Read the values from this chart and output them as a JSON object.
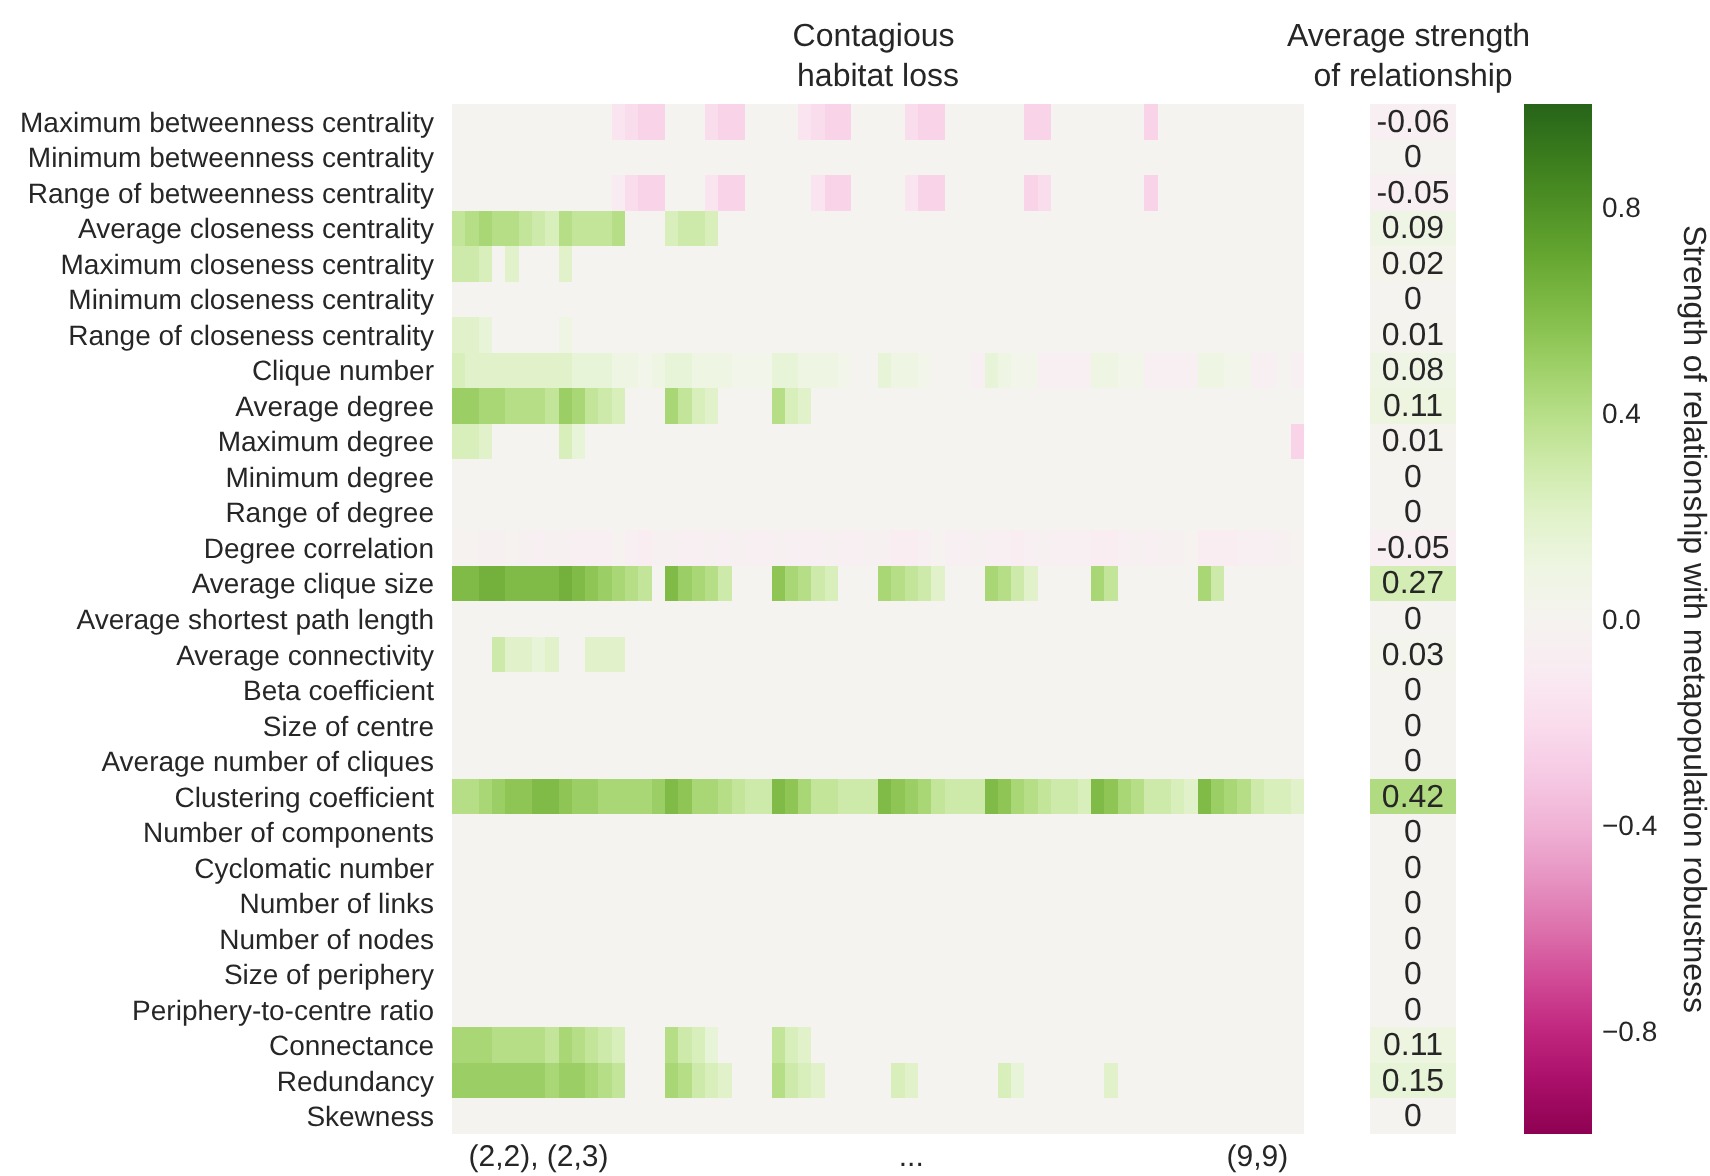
{
  "chart_data": [
    {
      "type": "heatmap",
      "title": "Contagious\nhabitat loss",
      "categories": [
        null,
        null,
        null,
        null,
        null,
        null,
        "(2,2), (2,3)",
        null,
        null,
        null,
        null,
        null,
        null,
        null,
        null,
        null,
        null,
        null,
        null,
        null,
        null,
        null,
        null,
        null,
        null,
        null,
        null,
        null,
        null,
        null,
        null,
        null,
        null,
        null,
        "...",
        null,
        null,
        null,
        null,
        null,
        null,
        null,
        null,
        null,
        null,
        null,
        null,
        null,
        null,
        null,
        null,
        null,
        null,
        null,
        null,
        null,
        null,
        null,
        null,
        null,
        "(9,9)",
        null,
        null,
        null
      ],
      "y_categories": [
        "Maximum betweenness centrality",
        "Minimum betweenness centrality",
        "Range of betweenness centrality",
        "Average closeness centrality",
        "Maximum closeness centrality",
        "Minimum closeness centrality",
        "Range of closeness centrality",
        "Clique number",
        "Average degree",
        "Maximum degree",
        "Minimum degree",
        "Range of degree",
        "Degree correlation",
        "Average clique size",
        "Average shortest path length",
        "Average connectivity",
        "Beta coefficient",
        "Size of centre",
        "Average number of cliques",
        "Clustering coefficient",
        "Number of components",
        "Cyclomatic number",
        "Number of links",
        "Number of nodes",
        "Size of periphery",
        "Periphery-to-centre ratio",
        "Connectance",
        "Redundancy",
        "Skewness"
      ],
      "cells": [
        [
          0,
          0,
          0,
          0,
          0,
          0,
          0,
          0,
          0,
          0,
          0,
          0,
          -0.15,
          -0.2,
          -0.25,
          -0.25,
          0,
          0,
          0,
          -0.2,
          -0.25,
          -0.25,
          0,
          0,
          0,
          0,
          -0.15,
          -0.2,
          -0.25,
          -0.25,
          0,
          0,
          0,
          0,
          -0.2,
          -0.25,
          -0.25,
          0,
          0,
          0,
          0,
          0,
          0,
          -0.25,
          -0.25,
          0,
          0,
          0,
          0,
          0,
          0,
          0,
          -0.25,
          0,
          0,
          0,
          0,
          0,
          0,
          0,
          0,
          0,
          0,
          0
        ],
        [
          0,
          0,
          0,
          0,
          0,
          0,
          0,
          0,
          0,
          0,
          0,
          0,
          0,
          0,
          0,
          0,
          0,
          0,
          0,
          0,
          0,
          0,
          0,
          0,
          0,
          0,
          0,
          0,
          0,
          0,
          0,
          0,
          0,
          0,
          0,
          0,
          0,
          0,
          0,
          0,
          0,
          0,
          0,
          0,
          0,
          0,
          0,
          0,
          0,
          0,
          0,
          0,
          0,
          0,
          0,
          0,
          0,
          0,
          0,
          0,
          0,
          0,
          0,
          0
        ],
        [
          0,
          0,
          0,
          0,
          0,
          0,
          0,
          0,
          0,
          0,
          0,
          0,
          -0.1,
          -0.2,
          -0.25,
          -0.25,
          0,
          0,
          0,
          -0.15,
          -0.25,
          -0.25,
          0,
          0,
          0,
          0,
          0,
          -0.15,
          -0.25,
          -0.25,
          0,
          0,
          0,
          0,
          -0.15,
          -0.25,
          -0.25,
          0,
          0,
          0,
          0,
          0,
          0,
          -0.25,
          -0.2,
          0,
          0,
          0,
          0,
          0,
          0,
          0,
          -0.25,
          0,
          0,
          0,
          0,
          0,
          0,
          0,
          0,
          0,
          0,
          0
        ],
        [
          0.35,
          0.4,
          0.45,
          0.4,
          0.4,
          0.35,
          0.3,
          0.25,
          0.4,
          0.35,
          0.35,
          0.35,
          0.4,
          0,
          0,
          0,
          0.25,
          0.3,
          0.3,
          0.25,
          0,
          0,
          0,
          0,
          0,
          0,
          0,
          0,
          0,
          0,
          0,
          0,
          0,
          0,
          0,
          0,
          0,
          0,
          0,
          0,
          0,
          0,
          0,
          0,
          0,
          0,
          0,
          0,
          0,
          0,
          0,
          0,
          0,
          0,
          0,
          0,
          0,
          0,
          0,
          0,
          0,
          0,
          0,
          0
        ],
        [
          0.3,
          0.3,
          0.25,
          0,
          0.2,
          0,
          0,
          0,
          0.2,
          0,
          0,
          0,
          0,
          0,
          0,
          0,
          0,
          0,
          0,
          0,
          0,
          0,
          0,
          0,
          0,
          0,
          0,
          0,
          0,
          0,
          0,
          0,
          0,
          0,
          0,
          0,
          0,
          0,
          0,
          0,
          0,
          0,
          0,
          0,
          0,
          0,
          0,
          0,
          0,
          0,
          0,
          0,
          0,
          0,
          0,
          0,
          0,
          0,
          0,
          0,
          0,
          0,
          0,
          0
        ],
        [
          0,
          0,
          0,
          0,
          0,
          0,
          0,
          0,
          0,
          0,
          0,
          0,
          0,
          0,
          0,
          0,
          0,
          0,
          0,
          0,
          0,
          0,
          0,
          0,
          0,
          0,
          0,
          0,
          0,
          0,
          0,
          0,
          0,
          0,
          0,
          0,
          0,
          0,
          0,
          0,
          0,
          0,
          0,
          0,
          0,
          0,
          0,
          0,
          0,
          0,
          0,
          0,
          0,
          0,
          0,
          0,
          0,
          0,
          0,
          0,
          0,
          0,
          0,
          0
        ],
        [
          0.2,
          0.2,
          0.15,
          0,
          0,
          0,
          0,
          0,
          0.1,
          0,
          0,
          0,
          0,
          0,
          0,
          0,
          0,
          0,
          0,
          0,
          0,
          0,
          0,
          0,
          0,
          0,
          0,
          0,
          0,
          0,
          0,
          0,
          0,
          0,
          0,
          0,
          0,
          0,
          0,
          0,
          0,
          0,
          0,
          0,
          0,
          0,
          0,
          0,
          0,
          0,
          0,
          0,
          0,
          0,
          0,
          0,
          0,
          0,
          0,
          0,
          0,
          0,
          0,
          0
        ],
        [
          0.25,
          0.2,
          0.2,
          0.2,
          0.2,
          0.2,
          0.2,
          0.2,
          0.2,
          0.15,
          0.15,
          0.15,
          0.1,
          0.1,
          0.05,
          0.1,
          0.15,
          0.15,
          0.1,
          0.1,
          0.1,
          0.05,
          0.05,
          0.05,
          0.15,
          0.15,
          0.1,
          0.1,
          0.1,
          0.05,
          0,
          0,
          0.15,
          0.1,
          0.1,
          0.05,
          0,
          0,
          0,
          -0.05,
          0.15,
          0.1,
          0.05,
          0.05,
          -0.05,
          -0.05,
          -0.05,
          -0.05,
          0.1,
          0.1,
          0.05,
          0.05,
          -0.05,
          -0.05,
          -0.05,
          -0.05,
          0.1,
          0.1,
          0.05,
          0.05,
          -0.05,
          -0.05,
          0,
          -0.05
        ],
        [
          0.5,
          0.5,
          0.45,
          0.45,
          0.4,
          0.4,
          0.4,
          0.35,
          0.5,
          0.45,
          0.35,
          0.3,
          0.25,
          0,
          0,
          0,
          0.45,
          0.35,
          0.25,
          0.2,
          0,
          0,
          0,
          0,
          0.4,
          0.25,
          0.2,
          0,
          0,
          0,
          0,
          0,
          0,
          0,
          0,
          0,
          0,
          0,
          0,
          0,
          0,
          0,
          0,
          0,
          0,
          0,
          0,
          0,
          0,
          0,
          0,
          0,
          0,
          0,
          0,
          0,
          0,
          0,
          0,
          0,
          0,
          0,
          0,
          0
        ],
        [
          0.25,
          0.25,
          0.2,
          0,
          0,
          0,
          0,
          0,
          0.25,
          0.15,
          0,
          0,
          0,
          0,
          0,
          0,
          0,
          0,
          0,
          0,
          0,
          0,
          0,
          0,
          0,
          0,
          0,
          0,
          0,
          0,
          0,
          0,
          0,
          0,
          0,
          0,
          0,
          0,
          0,
          0,
          0,
          0,
          0,
          0,
          0,
          0,
          0,
          0,
          0,
          0,
          0,
          0,
          0,
          0,
          0,
          0,
          0,
          0,
          0,
          0,
          0,
          0,
          0,
          -0.25
        ],
        [
          0,
          0,
          0,
          0,
          0,
          0,
          0,
          0,
          0,
          0,
          0,
          0,
          0,
          0,
          0,
          0,
          0,
          0,
          0,
          0,
          0,
          0,
          0,
          0,
          0,
          0,
          0,
          0,
          0,
          0,
          0,
          0,
          0,
          0,
          0,
          0,
          0,
          0,
          0,
          0,
          0,
          0,
          0,
          0,
          0,
          0,
          0,
          0,
          0,
          0,
          0,
          0,
          0,
          0,
          0,
          0,
          0,
          0,
          0,
          0,
          0,
          0,
          0,
          0
        ],
        [
          0,
          0,
          0,
          0,
          0,
          0,
          0,
          0,
          0,
          0,
          0,
          0,
          0,
          0,
          0,
          0,
          0,
          0,
          0,
          0,
          0,
          0,
          0,
          0,
          0,
          0,
          0,
          0,
          0,
          0,
          0,
          0,
          0,
          0,
          0,
          0,
          0,
          0,
          0,
          0,
          0,
          0,
          0,
          0,
          0,
          0,
          0,
          0,
          0,
          0,
          0,
          0,
          0,
          0,
          0,
          0,
          0,
          0,
          0,
          0,
          0,
          0,
          0,
          0
        ],
        [
          -0.02,
          -0.02,
          -0.04,
          -0.04,
          -0.02,
          -0.04,
          -0.06,
          -0.04,
          -0.04,
          -0.06,
          -0.06,
          -0.06,
          -0.02,
          -0.06,
          -0.08,
          -0.04,
          -0.04,
          -0.06,
          -0.06,
          -0.04,
          -0.06,
          -0.04,
          -0.06,
          -0.06,
          -0.04,
          -0.06,
          -0.06,
          -0.06,
          -0.04,
          -0.06,
          -0.06,
          -0.04,
          -0.04,
          -0.08,
          -0.08,
          -0.06,
          -0.02,
          -0.06,
          -0.06,
          -0.04,
          -0.06,
          -0.06,
          -0.08,
          -0.06,
          -0.04,
          -0.06,
          -0.06,
          -0.06,
          -0.08,
          -0.08,
          -0.06,
          -0.04,
          -0.06,
          -0.04,
          -0.04,
          -0.02,
          -0.08,
          -0.08,
          -0.08,
          -0.06,
          -0.06,
          -0.06,
          -0.04,
          -0.02
        ],
        [
          0.6,
          0.6,
          0.65,
          0.65,
          0.6,
          0.6,
          0.6,
          0.6,
          0.65,
          0.6,
          0.55,
          0.5,
          0.45,
          0.4,
          0.35,
          0,
          0.6,
          0.5,
          0.45,
          0.4,
          0.3,
          0,
          0,
          0,
          0.55,
          0.45,
          0.4,
          0.3,
          0.25,
          0,
          0,
          0,
          0.45,
          0.4,
          0.35,
          0.3,
          0.2,
          0,
          0,
          0,
          0.45,
          0.4,
          0.3,
          0.2,
          0,
          0,
          0,
          0,
          0.45,
          0.35,
          0,
          0,
          0,
          0,
          0,
          0,
          0.45,
          0.3,
          0,
          0,
          0,
          0,
          0,
          0
        ],
        [
          0,
          0,
          0,
          0,
          0,
          0,
          0,
          0,
          0,
          0,
          0,
          0,
          0,
          0,
          0,
          0,
          0,
          0,
          0,
          0,
          0,
          0,
          0,
          0,
          0,
          0,
          0,
          0,
          0,
          0,
          0,
          0,
          0,
          0,
          0,
          0,
          0,
          0,
          0,
          0,
          0,
          0,
          0,
          0,
          0,
          0,
          0,
          0,
          0,
          0,
          0,
          0,
          0,
          0,
          0,
          0,
          0,
          0,
          0,
          0,
          0,
          0,
          0,
          0
        ],
        [
          0,
          0,
          0,
          0.3,
          0.2,
          0.2,
          0.15,
          0.2,
          0,
          0,
          0.2,
          0.2,
          0.2,
          0,
          0,
          0,
          0,
          0,
          0,
          0,
          0,
          0,
          0,
          0,
          0,
          0,
          0,
          0,
          0,
          0,
          0,
          0,
          0,
          0,
          0,
          0,
          0,
          0,
          0,
          0,
          0,
          0,
          0,
          0,
          0,
          0,
          0,
          0,
          0,
          0,
          0,
          0,
          0,
          0,
          0,
          0,
          0,
          0,
          0,
          0,
          0,
          0,
          0,
          0
        ],
        [
          0,
          0,
          0,
          0,
          0,
          0,
          0,
          0,
          0,
          0,
          0,
          0,
          0,
          0,
          0,
          0,
          0,
          0,
          0,
          0,
          0,
          0,
          0,
          0,
          0,
          0,
          0,
          0,
          0,
          0,
          0,
          0,
          0,
          0,
          0,
          0,
          0,
          0,
          0,
          0,
          0,
          0,
          0,
          0,
          0,
          0,
          0,
          0,
          0,
          0,
          0,
          0,
          0,
          0,
          0,
          0,
          0,
          0,
          0,
          0,
          0,
          0,
          0,
          0
        ],
        [
          0,
          0,
          0,
          0,
          0,
          0,
          0,
          0,
          0,
          0,
          0,
          0,
          0,
          0,
          0,
          0,
          0,
          0,
          0,
          0,
          0,
          0,
          0,
          0,
          0,
          0,
          0,
          0,
          0,
          0,
          0,
          0,
          0,
          0,
          0,
          0,
          0,
          0,
          0,
          0,
          0,
          0,
          0,
          0,
          0,
          0,
          0,
          0,
          0,
          0,
          0,
          0,
          0,
          0,
          0,
          0,
          0,
          0,
          0,
          0,
          0,
          0,
          0,
          0
        ],
        [
          0,
          0,
          0,
          0,
          0,
          0,
          0,
          0,
          0,
          0,
          0,
          0,
          0,
          0,
          0,
          0,
          0,
          0,
          0,
          0,
          0,
          0,
          0,
          0,
          0,
          0,
          0,
          0,
          0,
          0,
          0,
          0,
          0,
          0,
          0,
          0,
          0,
          0,
          0,
          0,
          0,
          0,
          0,
          0,
          0,
          0,
          0,
          0,
          0,
          0,
          0,
          0,
          0,
          0,
          0,
          0,
          0,
          0,
          0,
          0,
          0,
          0,
          0,
          0
        ],
        [
          0.4,
          0.4,
          0.45,
          0.5,
          0.55,
          0.55,
          0.6,
          0.6,
          0.55,
          0.5,
          0.5,
          0.45,
          0.45,
          0.45,
          0.45,
          0.5,
          0.6,
          0.55,
          0.45,
          0.45,
          0.4,
          0.35,
          0.3,
          0.3,
          0.6,
          0.55,
          0.45,
          0.35,
          0.35,
          0.3,
          0.3,
          0.3,
          0.6,
          0.55,
          0.5,
          0.45,
          0.35,
          0.3,
          0.3,
          0.3,
          0.6,
          0.55,
          0.45,
          0.4,
          0.35,
          0.3,
          0.3,
          0.25,
          0.6,
          0.55,
          0.45,
          0.4,
          0.3,
          0.3,
          0.25,
          0.2,
          0.6,
          0.5,
          0.45,
          0.4,
          0.3,
          0.25,
          0.25,
          0.2
        ],
        [
          0,
          0,
          0,
          0,
          0,
          0,
          0,
          0,
          0,
          0,
          0,
          0,
          0,
          0,
          0,
          0,
          0,
          0,
          0,
          0,
          0,
          0,
          0,
          0,
          0,
          0,
          0,
          0,
          0,
          0,
          0,
          0,
          0,
          0,
          0,
          0,
          0,
          0,
          0,
          0,
          0,
          0,
          0,
          0,
          0,
          0,
          0,
          0,
          0,
          0,
          0,
          0,
          0,
          0,
          0,
          0,
          0,
          0,
          0,
          0,
          0,
          0,
          0,
          0
        ],
        [
          0,
          0,
          0,
          0,
          0,
          0,
          0,
          0,
          0,
          0,
          0,
          0,
          0,
          0,
          0,
          0,
          0,
          0,
          0,
          0,
          0,
          0,
          0,
          0,
          0,
          0,
          0,
          0,
          0,
          0,
          0,
          0,
          0,
          0,
          0,
          0,
          0,
          0,
          0,
          0,
          0,
          0,
          0,
          0,
          0,
          0,
          0,
          0,
          0,
          0,
          0,
          0,
          0,
          0,
          0,
          0,
          0,
          0,
          0,
          0,
          0,
          0,
          0,
          0
        ],
        [
          0,
          0,
          0,
          0,
          0,
          0,
          0,
          0,
          0,
          0,
          0,
          0,
          0,
          0,
          0,
          0,
          0,
          0,
          0,
          0,
          0,
          0,
          0,
          0,
          0,
          0,
          0,
          0,
          0,
          0,
          0,
          0,
          0,
          0,
          0,
          0,
          0,
          0,
          0,
          0,
          0,
          0,
          0,
          0,
          0,
          0,
          0,
          0,
          0,
          0,
          0,
          0,
          0,
          0,
          0,
          0,
          0,
          0,
          0,
          0,
          0,
          0,
          0,
          0
        ],
        [
          0,
          0,
          0,
          0,
          0,
          0,
          0,
          0,
          0,
          0,
          0,
          0,
          0,
          0,
          0,
          0,
          0,
          0,
          0,
          0,
          0,
          0,
          0,
          0,
          0,
          0,
          0,
          0,
          0,
          0,
          0,
          0,
          0,
          0,
          0,
          0,
          0,
          0,
          0,
          0,
          0,
          0,
          0,
          0,
          0,
          0,
          0,
          0,
          0,
          0,
          0,
          0,
          0,
          0,
          0,
          0,
          0,
          0,
          0,
          0,
          0,
          0,
          0,
          0
        ],
        [
          0,
          0,
          0,
          0,
          0,
          0,
          0,
          0,
          0,
          0,
          0,
          0,
          0,
          0,
          0,
          0,
          0,
          0,
          0,
          0,
          0,
          0,
          0,
          0,
          0,
          0,
          0,
          0,
          0,
          0,
          0,
          0,
          0,
          0,
          0,
          0,
          0,
          0,
          0,
          0,
          0,
          0,
          0,
          0,
          0,
          0,
          0,
          0,
          0,
          0,
          0,
          0,
          0,
          0,
          0,
          0,
          0,
          0,
          0,
          0,
          0,
          0,
          0,
          0
        ],
        [
          0,
          0,
          0,
          0,
          0,
          0,
          0,
          0,
          0,
          0,
          0,
          0,
          0,
          0,
          0,
          0,
          0,
          0,
          0,
          0,
          0,
          0,
          0,
          0,
          0,
          0,
          0,
          0,
          0,
          0,
          0,
          0,
          0,
          0,
          0,
          0,
          0,
          0,
          0,
          0,
          0,
          0,
          0,
          0,
          0,
          0,
          0,
          0,
          0,
          0,
          0,
          0,
          0,
          0,
          0,
          0,
          0,
          0,
          0,
          0,
          0,
          0,
          0,
          0
        ],
        [
          0.45,
          0.45,
          0.45,
          0.4,
          0.4,
          0.4,
          0.4,
          0.35,
          0.45,
          0.4,
          0.35,
          0.3,
          0.25,
          0,
          0,
          0,
          0.4,
          0.3,
          0.25,
          0.15,
          0,
          0,
          0,
          0,
          0.35,
          0.25,
          0.2,
          0,
          0,
          0,
          0,
          0,
          0,
          0,
          0,
          0,
          0,
          0,
          0,
          0,
          0,
          0,
          0,
          0,
          0,
          0,
          0,
          0,
          0,
          0,
          0,
          0,
          0,
          0,
          0,
          0,
          0,
          0,
          0,
          0,
          0,
          0,
          0,
          0
        ],
        [
          0.5,
          0.5,
          0.5,
          0.5,
          0.5,
          0.5,
          0.5,
          0.45,
          0.5,
          0.5,
          0.45,
          0.4,
          0.35,
          0,
          0,
          0,
          0.45,
          0.4,
          0.3,
          0.25,
          0.2,
          0,
          0,
          0,
          0.4,
          0.3,
          0.25,
          0.2,
          0,
          0,
          0,
          0,
          0,
          0.25,
          0.2,
          0,
          0,
          0,
          0,
          0,
          0,
          0.25,
          0.15,
          0,
          0,
          0,
          0,
          0,
          0,
          0.2,
          0,
          0,
          0,
          0,
          0,
          0,
          0,
          0,
          0,
          0,
          0,
          0,
          0,
          0
        ],
        [
          0,
          0,
          0,
          0,
          0,
          0,
          0,
          0,
          0,
          0,
          0,
          0,
          0,
          0,
          0,
          0,
          0,
          0,
          0,
          0,
          0,
          0,
          0,
          0,
          0,
          0,
          0,
          0,
          0,
          0,
          0,
          0,
          0,
          0,
          0,
          0,
          0,
          0,
          0,
          0,
          0,
          0,
          0,
          0,
          0,
          0,
          0,
          0,
          0,
          0,
          0,
          0,
          0,
          0,
          0,
          0,
          0,
          0,
          0,
          0,
          0,
          0,
          0,
          0
        ]
      ],
      "clim": [
        -1,
        1
      ],
      "cticks": [
        {
          "value": -0.8,
          "label": "−0.8"
        },
        {
          "value": -0.4,
          "label": "−0.4"
        },
        {
          "value": 0,
          "label": "0.0"
        },
        0.4,
        0.8
      ],
      "clabel": "Strength of relationship with metapopulation robustness"
    },
    {
      "type": "heatmap",
      "title": "Average strength\nof relationship",
      "categories": [
        null
      ],
      "y_categories": [
        null,
        null,
        null,
        null,
        null,
        null,
        null,
        null,
        null,
        null,
        null,
        null,
        null,
        null,
        null,
        null,
        null,
        null,
        null,
        null,
        null,
        null,
        null,
        null,
        null,
        null,
        null,
        null,
        null
      ],
      "cells": [
        [
          -0.06
        ],
        [
          0
        ],
        [
          -0.05
        ],
        [
          0.09
        ],
        [
          0.02
        ],
        [
          0
        ],
        [
          0.01
        ],
        [
          0.08
        ],
        [
          0.11
        ],
        [
          0.01
        ],
        [
          0
        ],
        [
          0
        ],
        [
          -0.05
        ],
        [
          0.27
        ],
        [
          0
        ],
        [
          0.03
        ],
        [
          0
        ],
        [
          0
        ],
        [
          0
        ],
        [
          0.42
        ],
        [
          0
        ],
        [
          0
        ],
        [
          0
        ],
        [
          0
        ],
        [
          0
        ],
        [
          0
        ],
        [
          0.11
        ],
        [
          0.15
        ],
        [
          0
        ]
      ],
      "data_labels": true
    }
  ]
}
